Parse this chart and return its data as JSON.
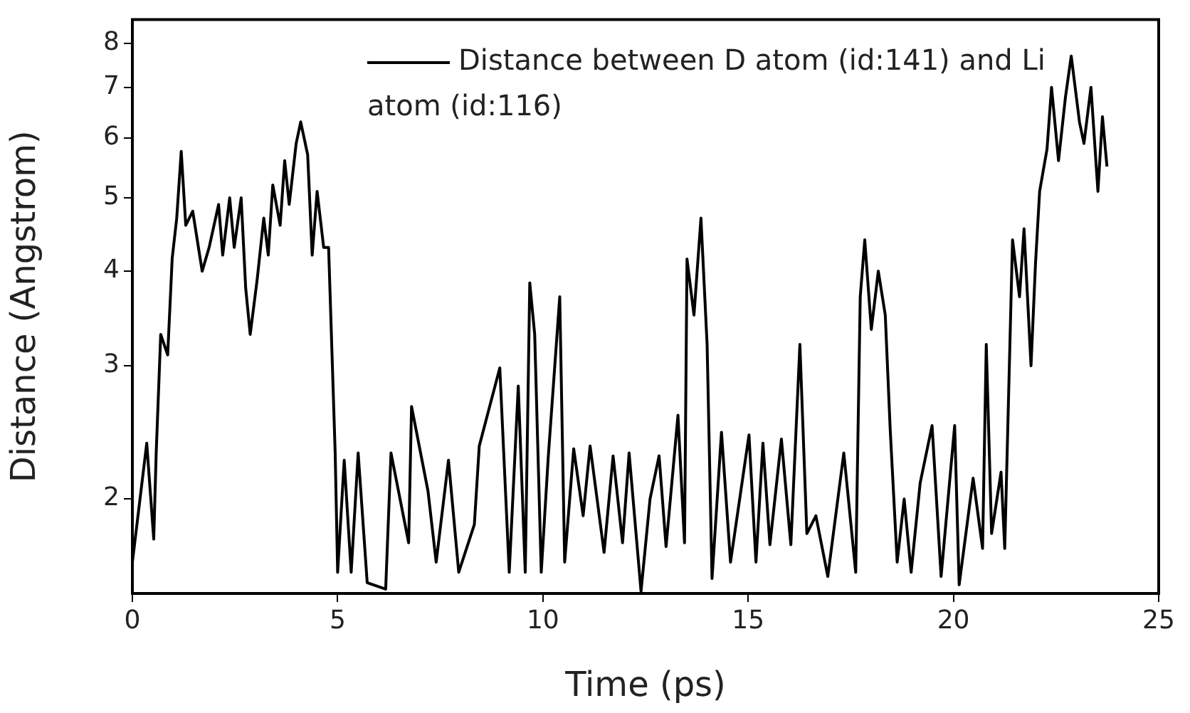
{
  "chart_data": {
    "type": "line",
    "xlabel": "Time (ps)",
    "ylabel": "Distance (Angstrom)",
    "log": "y",
    "grid": false,
    "legend": "top right",
    "marker": "none",
    "line_style": "solid",
    "xlim": [
      0,
      25
    ],
    "xticks": [
      0,
      5,
      10,
      15,
      20,
      25
    ],
    "ylim": [
      1.5,
      8.6
    ],
    "yticks": [
      2,
      3,
      4,
      5,
      6,
      7,
      8
    ],
    "series": [
      {
        "name": "Distance between D atom (id:141) and Li atom (id:116)",
        "color": "#000000",
        "x": [
          0,
          0.35,
          0.52,
          0.58,
          0.69,
          0.86,
          0.97,
          1.08,
          1.19,
          1.3,
          1.47,
          1.7,
          1.87,
          2.1,
          2.2,
          2.37,
          2.48,
          2.65,
          2.76,
          2.87,
          3.04,
          3.2,
          3.31,
          3.42,
          3.6,
          3.71,
          3.82,
          3.99,
          4.1,
          4.27,
          4.38,
          4.5,
          4.66,
          4.78,
          4.94,
          5.0,
          5.16,
          5.33,
          5.5,
          5.72,
          6.17,
          6.3,
          6.73,
          6.8,
          7.2,
          7.4,
          7.7,
          7.95,
          8.33,
          8.45,
          8.95,
          9.18,
          9.4,
          9.57,
          9.68,
          9.8,
          9.96,
          10.13,
          10.41,
          10.53,
          10.75,
          10.98,
          11.15,
          11.49,
          11.71,
          11.94,
          12.1,
          12.39,
          12.61,
          12.83,
          13.0,
          13.29,
          13.45,
          13.51,
          13.68,
          13.85,
          14.0,
          14.12,
          14.35,
          14.57,
          15.02,
          15.19,
          15.36,
          15.53,
          15.81,
          16.04,
          16.26,
          16.43,
          16.65,
          16.94,
          17.33,
          17.62,
          17.73,
          17.84,
          18.0,
          18.17,
          18.34,
          18.46,
          18.63,
          18.8,
          18.97,
          19.19,
          19.48,
          19.7,
          20.03,
          20.14,
          20.48,
          20.71,
          20.8,
          20.93,
          21.16,
          21.25,
          21.44,
          21.61,
          21.72,
          21.89,
          22.0,
          22.1,
          22.28,
          22.39,
          22.56,
          22.73,
          22.87,
          23.07,
          23.18,
          23.35,
          23.52,
          23.63,
          23.74
        ],
        "values": [
          1.65,
          2.37,
          1.77,
          2.3,
          3.3,
          3.1,
          4.16,
          4.7,
          5.76,
          4.6,
          4.8,
          4.0,
          4.3,
          4.9,
          4.2,
          5.0,
          4.3,
          5.0,
          3.8,
          3.3,
          3.9,
          4.7,
          4.2,
          5.2,
          4.6,
          5.6,
          4.9,
          5.9,
          6.3,
          5.7,
          4.2,
          5.1,
          4.3,
          4.3,
          2.3,
          1.6,
          2.25,
          1.6,
          2.3,
          1.55,
          1.52,
          2.3,
          1.75,
          2.65,
          2.05,
          1.65,
          2.25,
          1.6,
          1.85,
          2.35,
          2.98,
          1.6,
          2.82,
          1.6,
          3.86,
          3.3,
          1.6,
          2.27,
          3.7,
          1.65,
          2.33,
          1.9,
          2.35,
          1.7,
          2.28,
          1.75,
          2.3,
          1.51,
          2.0,
          2.28,
          1.73,
          2.58,
          1.75,
          4.15,
          3.5,
          4.7,
          3.2,
          1.57,
          2.45,
          1.65,
          2.43,
          1.65,
          2.37,
          1.74,
          2.4,
          1.74,
          3.2,
          1.8,
          1.9,
          1.58,
          2.3,
          1.6,
          3.7,
          4.4,
          3.35,
          4.0,
          3.5,
          2.47,
          1.65,
          2.0,
          1.6,
          2.1,
          2.5,
          1.58,
          2.5,
          1.54,
          2.13,
          1.72,
          3.2,
          1.8,
          2.17,
          1.72,
          4.4,
          3.7,
          4.55,
          3.0,
          4.1,
          5.1,
          5.8,
          7.0,
          5.6,
          6.8,
          7.7,
          6.3,
          5.9,
          7.0,
          5.1,
          6.4,
          5.5
        ]
      }
    ]
  }
}
